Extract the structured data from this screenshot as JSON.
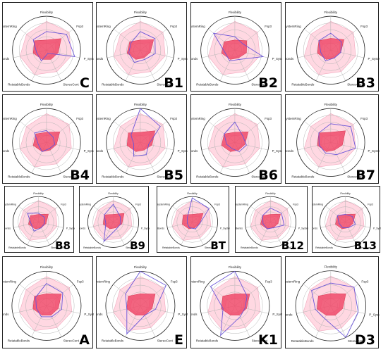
{
  "chart_data": {
    "type": "radar",
    "axes": [
      "Flexibility",
      "Fsp3",
      "P_SystemRing",
      "StereoCent",
      "RetatableBonds",
      "RigidBonds",
      "SizeSystemRing"
    ],
    "rlim": [
      0,
      1
    ],
    "rings": 5,
    "colors": {
      "reference_band": "#ffc8d6",
      "reference_line": "#f2a7bd",
      "compound_fill": "#f04a6a",
      "molecule_line": "#6a55d8",
      "grid": "#b5b5b5"
    },
    "panels": [
      {
        "label": "C",
        "compound": [
          0.3,
          0.55,
          0.35,
          0.3,
          0.3,
          0.4,
          0.45
        ],
        "molecule": [
          0.55,
          0.75,
          0.85,
          0.1,
          0.35,
          0.3,
          0.5
        ]
      },
      {
        "label": "B1",
        "compound": [
          0.3,
          0.5,
          0.3,
          0.25,
          0.3,
          0.4,
          0.4
        ],
        "molecule": [
          0.55,
          0.55,
          0.45,
          0.3,
          0.4,
          0.35,
          0.35
        ]
      },
      {
        "label": "B2",
        "compound": [
          0.3,
          0.45,
          0.35,
          0.25,
          0.3,
          0.4,
          0.4
        ],
        "molecule": [
          0.4,
          0.3,
          0.85,
          0.3,
          0.35,
          0.3,
          0.8
        ]
      },
      {
        "label": "B3",
        "compound": [
          0.35,
          0.5,
          0.3,
          0.25,
          0.3,
          0.4,
          0.45
        ],
        "molecule": [
          0.5,
          0.4,
          0.3,
          0.25,
          0.35,
          0.3,
          0.45
        ]
      },
      {
        "label": "B4",
        "compound": [
          0.3,
          0.5,
          0.3,
          0.25,
          0.3,
          0.4,
          0.4
        ],
        "molecule": [
          0.35,
          0.25,
          0.25,
          0.2,
          0.3,
          0.25,
          0.45
        ]
      },
      {
        "label": "B5",
        "compound": [
          0.3,
          0.55,
          0.35,
          0.25,
          0.3,
          0.4,
          0.45
        ],
        "molecule": [
          1.0,
          0.75,
          0.25,
          0.4,
          0.45,
          0.2,
          0.35
        ]
      },
      {
        "label": "B6",
        "compound": [
          0.3,
          0.5,
          0.3,
          0.25,
          0.3,
          0.4,
          0.4
        ],
        "molecule": [
          0.6,
          0.3,
          0.35,
          0.3,
          0.2,
          0.25,
          0.4
        ]
      },
      {
        "label": "B7",
        "compound": [
          0.3,
          0.55,
          0.35,
          0.25,
          0.3,
          0.4,
          0.45
        ],
        "molecule": [
          0.55,
          0.75,
          0.75,
          0.4,
          0.35,
          0.35,
          0.45
        ]
      },
      {
        "label": "B8",
        "compound": [
          0.3,
          0.5,
          0.3,
          0.25,
          0.3,
          0.4,
          0.4
        ],
        "molecule": [
          0.35,
          0.3,
          0.25,
          0.25,
          0.4,
          0.3,
          0.55
        ]
      },
      {
        "label": "B9",
        "compound": [
          0.3,
          0.55,
          0.35,
          0.25,
          0.3,
          0.4,
          0.45
        ],
        "molecule": [
          0.7,
          0.35,
          0.3,
          0.3,
          0.85,
          0.3,
          0.45
        ]
      },
      {
        "label": "BT",
        "compound": [
          0.3,
          0.55,
          0.3,
          0.25,
          0.3,
          0.4,
          0.45
        ],
        "molecule": [
          0.95,
          0.85,
          0.3,
          0.3,
          0.25,
          0.2,
          0.25
        ]
      },
      {
        "label": "B12",
        "compound": [
          0.3,
          0.5,
          0.3,
          0.25,
          0.3,
          0.4,
          0.4
        ],
        "molecule": [
          0.55,
          0.55,
          0.55,
          0.25,
          0.3,
          0.3,
          0.4
        ]
      },
      {
        "label": "B13",
        "compound": [
          0.3,
          0.5,
          0.3,
          0.25,
          0.3,
          0.4,
          0.4
        ],
        "molecule": [
          0.3,
          0.35,
          0.4,
          0.25,
          0.25,
          0.25,
          0.4
        ]
      },
      {
        "label": "A",
        "compound": [
          0.35,
          0.55,
          0.35,
          0.3,
          0.3,
          0.4,
          0.45
        ],
        "molecule": [
          0.65,
          0.6,
          0.45,
          0.35,
          0.35,
          0.3,
          0.4
        ]
      },
      {
        "label": "E",
        "compound": [
          0.35,
          0.55,
          0.35,
          0.3,
          0.3,
          0.4,
          0.45
        ],
        "molecule": [
          1.0,
          0.95,
          0.45,
          0.3,
          0.9,
          0.4,
          0.55
        ]
      },
      {
        "label": "K1",
        "compound": [
          0.35,
          0.55,
          0.35,
          0.3,
          0.3,
          0.4,
          0.45
        ],
        "molecule": [
          1.0,
          0.45,
          0.3,
          0.35,
          0.95,
          0.35,
          0.9
        ]
      },
      {
        "label": "D3",
        "compound": [
          0.35,
          0.55,
          0.35,
          0.3,
          0.3,
          0.4,
          0.45
        ],
        "molecule": [
          0.65,
          0.85,
          0.8,
          1.0,
          0.4,
          0.45,
          0.7
        ]
      }
    ],
    "reference_band": {
      "upper": [
        0.85,
        0.85,
        0.75,
        0.7,
        0.8,
        0.8,
        0.75
      ],
      "lower": [
        0.2,
        0.35,
        0.25,
        0.2,
        0.25,
        0.3,
        0.3
      ]
    }
  }
}
